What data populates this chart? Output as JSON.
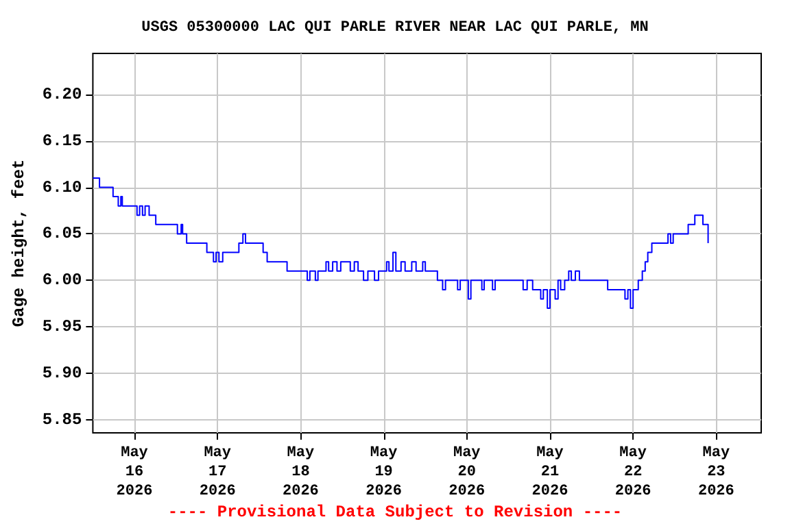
{
  "chart_data": {
    "type": "step",
    "title": "USGS 05300000 LAC QUI PARLE RIVER NEAR LAC QUI PARLE, MN",
    "ylabel": "Gage height, feet",
    "annotations": [
      "---- Provisional Data Subject to Revision ----"
    ],
    "x": [
      "2026-05-15T12:00",
      "2026-05-15T13:55",
      "2026-05-15T17:50",
      "2026-05-15T19:20",
      "2026-05-15T20:05",
      "2026-05-15T20:30",
      "2026-05-16T00:45",
      "2026-05-16T01:30",
      "2026-05-16T02:20",
      "2026-05-16T03:05",
      "2026-05-16T04:15",
      "2026-05-16T06:10",
      "2026-05-16T12:25",
      "2026-05-16T13:30",
      "2026-05-16T13:55",
      "2026-05-16T15:05",
      "2026-05-16T20:55",
      "2026-05-16T22:50",
      "2026-05-16T23:35",
      "2026-05-17T00:25",
      "2026-05-17T01:30",
      "2026-05-17T06:10",
      "2026-05-17T07:20",
      "2026-05-17T08:05",
      "2026-05-17T13:10",
      "2026-05-17T14:20",
      "2026-05-17T20:05",
      "2026-05-18T01:55",
      "2026-05-18T02:40",
      "2026-05-18T04:15",
      "2026-05-18T05:00",
      "2026-05-18T07:20",
      "2026-05-18T08:05",
      "2026-05-18T09:15",
      "2026-05-18T10:30",
      "2026-05-18T11:35",
      "2026-05-18T14:20",
      "2026-05-18T15:30",
      "2026-05-18T16:35",
      "2026-05-18T18:10",
      "2026-05-18T19:25",
      "2026-05-18T21:20",
      "2026-05-18T22:30",
      "2026-05-19T00:50",
      "2026-05-19T01:30",
      "2026-05-19T02:40",
      "2026-05-19T03:30",
      "2026-05-19T05:00",
      "2026-05-19T06:10",
      "2026-05-19T08:05",
      "2026-05-19T09:20",
      "2026-05-19T11:15",
      "2026-05-19T12:00",
      "2026-05-19T15:30",
      "2026-05-19T17:00",
      "2026-05-19T17:50",
      "2026-05-19T21:20",
      "2026-05-19T22:05",
      "2026-05-20T00:25",
      "2026-05-20T01:10",
      "2026-05-20T04:20",
      "2026-05-20T05:00",
      "2026-05-20T07:25",
      "2026-05-20T08:10",
      "2026-05-20T16:15",
      "2026-05-20T17:25",
      "2026-05-20T19:00",
      "2026-05-20T21:20",
      "2026-05-20T22:05",
      "2026-05-20T23:15",
      "2026-05-21T00:00",
      "2026-05-21T01:30",
      "2026-05-21T02:20",
      "2026-05-21T03:05",
      "2026-05-21T04:15",
      "2026-05-21T05:25",
      "2026-05-21T06:10",
      "2026-05-21T07:20",
      "2026-05-21T08:30",
      "2026-05-21T16:40",
      "2026-05-21T21:40",
      "2026-05-21T22:30",
      "2026-05-21T23:15",
      "2026-05-22T00:00",
      "2026-05-22T01:30",
      "2026-05-22T02:40",
      "2026-05-22T03:30",
      "2026-05-22T04:15",
      "2026-05-22T05:25",
      "2026-05-22T10:05",
      "2026-05-22T10:50",
      "2026-05-22T11:35",
      "2026-05-22T15:55",
      "2026-05-22T17:50",
      "2026-05-22T20:10",
      "2026-05-22T21:40"
    ],
    "series": [
      {
        "color": "#0000ff",
        "values": [
          6.11,
          6.1,
          6.09,
          6.08,
          6.09,
          6.08,
          6.07,
          6.08,
          6.07,
          6.08,
          6.07,
          6.06,
          6.05,
          6.06,
          6.05,
          6.04,
          6.03,
          6.02,
          6.03,
          6.02,
          6.03,
          6.04,
          6.05,
          6.04,
          6.03,
          6.02,
          6.01,
          6.0,
          6.01,
          6.0,
          6.01,
          6.02,
          6.01,
          6.02,
          6.01,
          6.02,
          6.01,
          6.02,
          6.01,
          6.0,
          6.01,
          6.0,
          6.01,
          6.02,
          6.01,
          6.03,
          6.01,
          6.02,
          6.01,
          6.02,
          6.01,
          6.02,
          6.01,
          6.0,
          5.99,
          6.0,
          5.99,
          6.0,
          5.98,
          6.0,
          5.99,
          6.0,
          5.99,
          6.0,
          5.99,
          6.0,
          5.99,
          5.98,
          5.99,
          5.97,
          5.99,
          5.98,
          6.0,
          5.99,
          6.0,
          6.01,
          6.0,
          6.01,
          6.0,
          5.99,
          5.98,
          5.99,
          5.97,
          5.99,
          6.0,
          6.01,
          6.02,
          6.03,
          6.04,
          6.05,
          6.04,
          6.05,
          6.06,
          6.07,
          6.06,
          6.04
        ]
      }
    ],
    "xlim": [
      "2026-05-15T12:00",
      "2026-05-23T13:00"
    ],
    "xticks": [
      {
        "value": "2026-05-16",
        "label": "May\n16\n2026"
      },
      {
        "value": "2026-05-17",
        "label": "May\n17\n2026"
      },
      {
        "value": "2026-05-18",
        "label": "May\n18\n2026"
      },
      {
        "value": "2026-05-19",
        "label": "May\n19\n2026"
      },
      {
        "value": "2026-05-20",
        "label": "May\n20\n2026"
      },
      {
        "value": "2026-05-21",
        "label": "May\n21\n2026"
      },
      {
        "value": "2026-05-22",
        "label": "May\n22\n2026"
      },
      {
        "value": "2026-05-23",
        "label": "May\n23\n2026"
      }
    ],
    "ylim": [
      5.836,
      6.244
    ],
    "yticks": [
      {
        "value": 5.85,
        "label": "5.85"
      },
      {
        "value": 5.9,
        "label": "5.90"
      },
      {
        "value": 5.95,
        "label": "5.95"
      },
      {
        "value": 6.0,
        "label": "6.00"
      },
      {
        "value": 6.05,
        "label": "6.05"
      },
      {
        "value": 6.1,
        "label": "6.10"
      },
      {
        "value": 6.15,
        "label": "6.15"
      },
      {
        "value": 6.2,
        "label": "6.20"
      }
    ],
    "grid": true,
    "marker": "none",
    "line_style": "solid"
  }
}
